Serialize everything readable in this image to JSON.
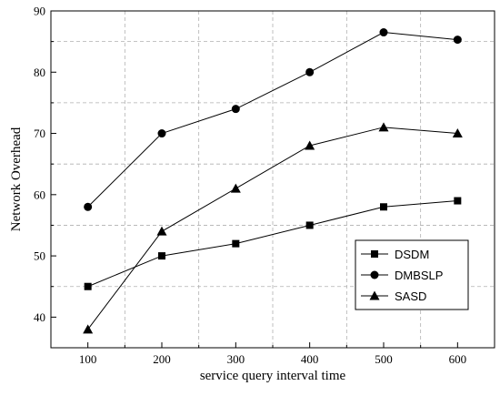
{
  "chart_data": {
    "type": "line",
    "title": "",
    "xlabel": "service query interval time",
    "ylabel": "Network Overhead",
    "x": [
      100,
      200,
      300,
      400,
      500,
      600
    ],
    "xlim": [
      50,
      650
    ],
    "ylim": [
      35,
      90
    ],
    "x_ticks": [
      100,
      200,
      300,
      400,
      500,
      600
    ],
    "y_ticks": [
      40,
      50,
      60,
      70,
      80,
      90
    ],
    "grid": "dashed horizontal and vertical at half-intervals",
    "legend_position": "bottom-right",
    "series": [
      {
        "name": "DSDM",
        "marker": "square",
        "values": [
          45,
          50,
          52,
          55,
          58,
          59
        ]
      },
      {
        "name": "DMBSLP",
        "marker": "circle",
        "values": [
          58,
          70,
          74,
          80,
          86.5,
          85.3
        ]
      },
      {
        "name": "SASD",
        "marker": "triangle",
        "values": [
          38,
          54,
          61,
          68,
          71,
          70
        ]
      }
    ]
  }
}
